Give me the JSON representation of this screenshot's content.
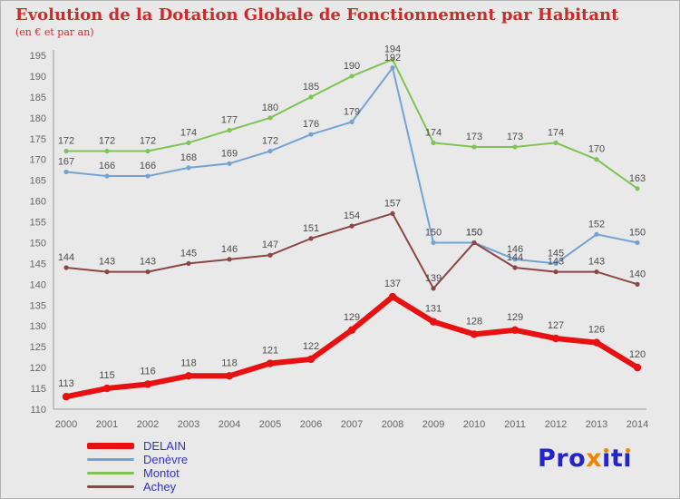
{
  "header": {
    "title": "Evolution de la Dotation Globale de Fonctionnement par Habitant",
    "subtitle": "(en € et par an)",
    "title_color": "#cc2b2b"
  },
  "chart_data": {
    "type": "line",
    "x": [
      "2000",
      "2001",
      "2002",
      "2003",
      "2004",
      "2005",
      "2006",
      "2007",
      "2008",
      "2009",
      "2010",
      "2011",
      "2012",
      "2013",
      "2014"
    ],
    "ylim": [
      110,
      195
    ],
    "ytick_step": 5,
    "grid": false,
    "legend_position": "bottom-left",
    "series": [
      {
        "name": "DELAIN",
        "color": "#e81010",
        "line_width": 6,
        "values": [
          113,
          115,
          116,
          118,
          118,
          121,
          122,
          129,
          137,
          131,
          128,
          129,
          127,
          126,
          120
        ]
      },
      {
        "name": "Denèvre",
        "color": "#73a3d4",
        "line_width": 2,
        "values": [
          167,
          166,
          166,
          168,
          169,
          172,
          176,
          179,
          192,
          150,
          150,
          146,
          145,
          152,
          150
        ]
      },
      {
        "name": "Montot",
        "color": "#7ec455",
        "line_width": 2,
        "values": [
          172,
          172,
          172,
          174,
          177,
          180,
          185,
          190,
          194,
          174,
          173,
          173,
          174,
          170,
          163
        ]
      },
      {
        "name": "Achey",
        "color": "#8c4646",
        "line_width": 2,
        "values": [
          144,
          143,
          143,
          145,
          146,
          147,
          151,
          154,
          157,
          139,
          150,
          144,
          143,
          143,
          140
        ]
      }
    ],
    "label_color": "#4d4d4d",
    "axis_color": "#9a9a9a",
    "tick_color": "#666666"
  },
  "legend": {
    "text_color": "#3333cc",
    "items": [
      {
        "label": "DELAIN"
      },
      {
        "label": "Denèvre"
      },
      {
        "label": "Montot"
      },
      {
        "label": "Achey"
      }
    ]
  },
  "logo": {
    "text": "Proxiti",
    "blue": "#2424c8",
    "orange": "#f08200",
    "segments": [
      {
        "text": "Pro",
        "color": "#2424c8"
      },
      {
        "text": "x",
        "color": "#f08200"
      },
      {
        "text": "iti",
        "color": "#2424c8",
        "dot_color": "#f08200"
      }
    ]
  }
}
